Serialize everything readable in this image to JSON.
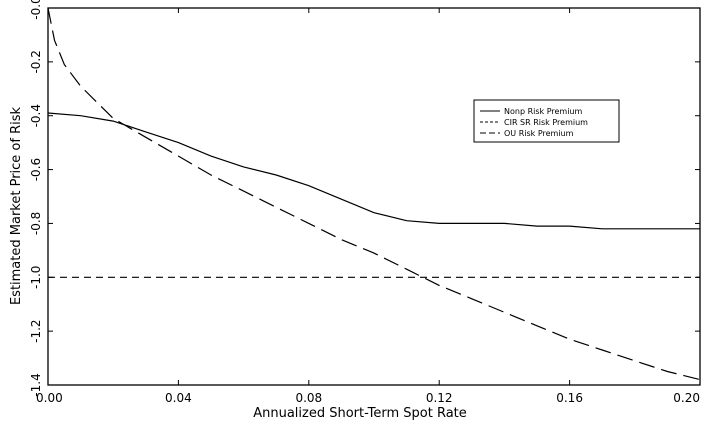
{
  "chart_data": {
    "type": "line",
    "title": "",
    "xlabel": "Annualized Short-Term Spot Rate",
    "ylabel": "Estimated Market Price of Risk",
    "xlim": [
      0.0,
      0.2
    ],
    "ylim": [
      0.0,
      -1.4
    ],
    "x_ticks": [
      0.0,
      0.04,
      0.08,
      0.12,
      0.16,
      0.2
    ],
    "x_tick_labels": [
      "0.00",
      "0.04",
      "0.08",
      "0.12",
      "0.16",
      "0.20"
    ],
    "y_ticks": [
      0.0,
      -0.2,
      -0.4,
      -0.6,
      -0.8,
      -1.0,
      -1.2,
      -1.4
    ],
    "y_tick_labels": [
      "-0.0",
      "-0.2",
      "-0.4",
      "-0.6",
      "-0.8",
      "-1.0",
      "-1.2",
      "-1.4"
    ],
    "grid": false,
    "legend_position": "upper-right",
    "series": [
      {
        "name": "Nonp Risk Premium",
        "style": "solid",
        "x": [
          0.0,
          0.01,
          0.02,
          0.03,
          0.04,
          0.05,
          0.06,
          0.07,
          0.08,
          0.09,
          0.1,
          0.11,
          0.12,
          0.13,
          0.14,
          0.15,
          0.16,
          0.17,
          0.18,
          0.19,
          0.2
        ],
        "y": [
          -0.39,
          -0.4,
          -0.42,
          -0.46,
          -0.5,
          -0.55,
          -0.59,
          -0.62,
          -0.66,
          -0.71,
          -0.76,
          -0.79,
          -0.8,
          -0.8,
          -0.8,
          -0.81,
          -0.81,
          -0.82,
          -0.82,
          -0.82,
          -0.82
        ]
      },
      {
        "name": "CIR SR Risk Premium",
        "style": "dash",
        "x": [
          0.0,
          0.2
        ],
        "y": [
          -1.0,
          -1.0
        ]
      },
      {
        "name": "OU Risk Premium",
        "style": "longdash",
        "x": [
          0.0,
          0.002,
          0.005,
          0.01,
          0.015,
          0.02,
          0.03,
          0.04,
          0.05,
          0.06,
          0.07,
          0.08,
          0.09,
          0.1,
          0.11,
          0.12,
          0.13,
          0.14,
          0.15,
          0.16,
          0.17,
          0.18,
          0.19,
          0.2
        ],
        "y": [
          0.0,
          -0.12,
          -0.21,
          -0.29,
          -0.35,
          -0.41,
          -0.48,
          -0.55,
          -0.62,
          -0.68,
          -0.74,
          -0.8,
          -0.86,
          -0.91,
          -0.97,
          -1.03,
          -1.08,
          -1.13,
          -1.18,
          -1.23,
          -1.27,
          -1.31,
          -1.35,
          -1.38
        ]
      }
    ]
  }
}
